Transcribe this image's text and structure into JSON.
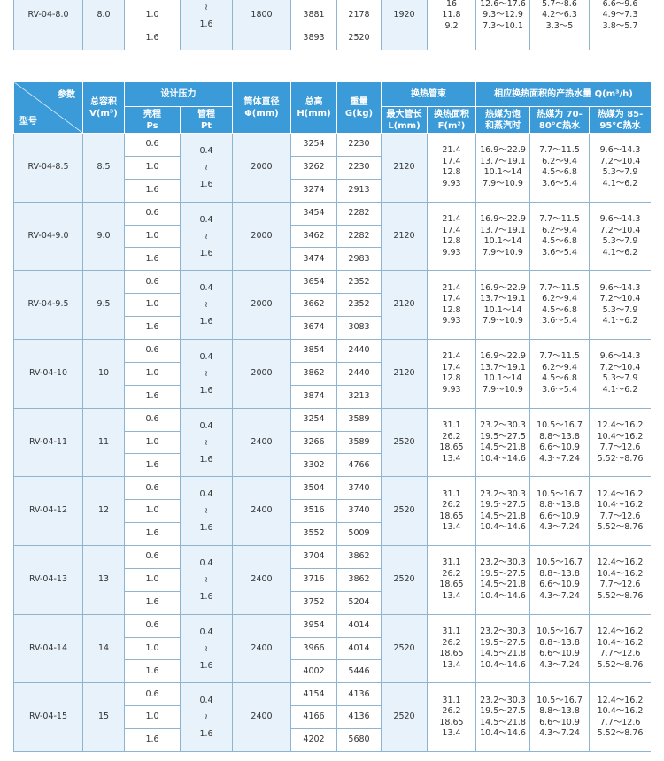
{
  "fragment": {
    "model": "RV-04-8.0",
    "volume": "8.0",
    "ps": [
      "1.0",
      "1.6"
    ],
    "pt": [
      "≀",
      "1.6"
    ],
    "diameter": "1800",
    "heights": [
      "3881",
      "3893"
    ],
    "weights": [
      "2178",
      "2520"
    ],
    "length": "1920",
    "areas": [
      "16",
      "11.8",
      "9.2"
    ],
    "sat": [
      "12.6～17.6",
      "9.3～12.9",
      "7.3～10.1"
    ],
    "w70": [
      "5.7～8.6",
      "4.2～6.3",
      "3.3～5"
    ],
    "w85": [
      "6.6～9.6",
      "4.9～7.3",
      "3.8～5.7"
    ]
  },
  "header": {
    "param": "参数",
    "model": "型号",
    "volume": [
      "总容积",
      "V(m³)"
    ],
    "pressure": "设计压力",
    "ps": [
      "壳程",
      "Ps"
    ],
    "pt": [
      "管程",
      "Pt"
    ],
    "diameter": [
      "筒体直径",
      "Φ(mm)"
    ],
    "height": [
      "总高",
      "H(mm)"
    ],
    "weight": [
      "重量",
      "G(kg)"
    ],
    "tube": "换热管束",
    "length": [
      "最大管长",
      "L(mm)"
    ],
    "area": [
      "换热面积",
      "F(m²)"
    ],
    "output": "相应换热面积的产热水量 Q(m³/h)",
    "sat": [
      "热媒为饱",
      "和蒸汽时"
    ],
    "w70": [
      "热媒为 70-",
      "80°C热水"
    ],
    "w85": [
      "热媒为 85-",
      "95°C热水"
    ]
  },
  "groups": [
    {
      "model": "RV-04-8.5",
      "volume": "8.5",
      "ps": [
        "0.6",
        "1.0",
        "1.6"
      ],
      "pt": [
        "0.4",
        "≀",
        "1.6"
      ],
      "diameter": "2000",
      "heights": [
        "3254",
        "3262",
        "3274"
      ],
      "weights": [
        "2230",
        "2230",
        "2913"
      ],
      "length": "2120",
      "areas": [
        "21.4",
        "17.4",
        "12.8",
        "9.93"
      ],
      "sat": [
        "16.9～22.9",
        "13.7～19.1",
        "10.1～14",
        "7.9～10.9"
      ],
      "w70": [
        "7.7～11.5",
        "6.2～9.4",
        "4.5～6.8",
        "3.6～5.4"
      ],
      "w85": [
        "9.6～14.3",
        "7.2～10.4",
        "5.3～7.9",
        "4.1～6.2"
      ]
    },
    {
      "model": "RV-04-9.0",
      "volume": "9.0",
      "ps": [
        "0.6",
        "1.0",
        "1.6"
      ],
      "pt": [
        "0.4",
        "≀",
        "1.6"
      ],
      "diameter": "2000",
      "heights": [
        "3454",
        "3462",
        "3474"
      ],
      "weights": [
        "2282",
        "2282",
        "2983"
      ],
      "length": "2120",
      "areas": [
        "21.4",
        "17.4",
        "12.8",
        "9.93"
      ],
      "sat": [
        "16.9～22.9",
        "13.7～19.1",
        "10.1～14",
        "7.9～10.9"
      ],
      "w70": [
        "7.7～11.5",
        "6.2～9.4",
        "4.5～6.8",
        "3.6～5.4"
      ],
      "w85": [
        "9.6～14.3",
        "7.2～10.4",
        "5.3～7.9",
        "4.1～6.2"
      ]
    },
    {
      "model": "RV-04-9.5",
      "volume": "9.5",
      "ps": [
        "0.6",
        "1.0",
        "1.6"
      ],
      "pt": [
        "0.4",
        "≀",
        "1.6"
      ],
      "diameter": "2000",
      "heights": [
        "3654",
        "3662",
        "3674"
      ],
      "weights": [
        "2352",
        "2352",
        "3083"
      ],
      "length": "2120",
      "areas": [
        "21.4",
        "17.4",
        "12.8",
        "9.93"
      ],
      "sat": [
        "16.9～22.9",
        "13.7～19.1",
        "10.1～14",
        "7.9～10.9"
      ],
      "w70": [
        "7.7～11.5",
        "6.2～9.4",
        "4.5～6.8",
        "3.6～5.4"
      ],
      "w85": [
        "9.6～14.3",
        "7.2～10.4",
        "5.3～7.9",
        "4.1～6.2"
      ]
    },
    {
      "model": "RV-04-10",
      "volume": "10",
      "ps": [
        "0.6",
        "1.0",
        "1.6"
      ],
      "pt": [
        "0.4",
        "≀",
        "1.6"
      ],
      "diameter": "2000",
      "heights": [
        "3854",
        "3862",
        "3874"
      ],
      "weights": [
        "2440",
        "2440",
        "3213"
      ],
      "length": "2120",
      "areas": [
        "21.4",
        "17.4",
        "12.8",
        "9.93"
      ],
      "sat": [
        "16.9～22.9",
        "13.7～19.1",
        "10.1～14",
        "7.9～10.9"
      ],
      "w70": [
        "7.7～11.5",
        "6.2～9.4",
        "4.5～6.8",
        "3.6～5.4"
      ],
      "w85": [
        "9.6～14.3",
        "7.2～10.4",
        "5.3～7.9",
        "4.1～6.2"
      ]
    },
    {
      "model": "RV-04-11",
      "volume": "11",
      "ps": [
        "0.6",
        "1.0",
        "1.6"
      ],
      "pt": [
        "0.4",
        "≀",
        "1.6"
      ],
      "diameter": "2400",
      "heights": [
        "3254",
        "3266",
        "3302"
      ],
      "weights": [
        "3589",
        "3589",
        "4766"
      ],
      "length": "2520",
      "areas": [
        "31.1",
        "26.2",
        "18.65",
        "13.4"
      ],
      "sat": [
        "23.2～30.3",
        "19.5～27.5",
        "14.5～21.8",
        "10.4～14.6"
      ],
      "w70": [
        "10.5～16.7",
        "8.8～13.8",
        "6.6～10.9",
        "4.3～7.24"
      ],
      "w85": [
        "12.4～16.2",
        "10.4～16.2",
        "7.7～12.6",
        "5.52～8.76"
      ]
    },
    {
      "model": "RV-04-12",
      "volume": "12",
      "ps": [
        "0.6",
        "1.0",
        "1.6"
      ],
      "pt": [
        "0.4",
        "≀",
        "1.6"
      ],
      "diameter": "2400",
      "heights": [
        "3504",
        "3516",
        "3552"
      ],
      "weights": [
        "3740",
        "3740",
        "5009"
      ],
      "length": "2520",
      "areas": [
        "31.1",
        "26.2",
        "18.65",
        "13.4"
      ],
      "sat": [
        "23.2～30.3",
        "19.5～27.5",
        "14.5～21.8",
        "10.4～14.6"
      ],
      "w70": [
        "10.5～16.7",
        "8.8～13.8",
        "6.6～10.9",
        "4.3～7.24"
      ],
      "w85": [
        "12.4～16.2",
        "10.4～16.2",
        "7.7～12.6",
        "5.52～8.76"
      ]
    },
    {
      "model": "RV-04-13",
      "volume": "13",
      "ps": [
        "0.6",
        "1.0",
        "1.6"
      ],
      "pt": [
        "0.4",
        "≀",
        "1.6"
      ],
      "diameter": "2400",
      "heights": [
        "3704",
        "3716",
        "3752"
      ],
      "weights": [
        "3862",
        "3862",
        "5204"
      ],
      "length": "2520",
      "areas": [
        "31.1",
        "26.2",
        "18.65",
        "13.4"
      ],
      "sat": [
        "23.2～30.3",
        "19.5～27.5",
        "14.5～21.8",
        "10.4～14.6"
      ],
      "w70": [
        "10.5～16.7",
        "8.8～13.8",
        "6.6～10.9",
        "4.3～7.24"
      ],
      "w85": [
        "12.4～16.2",
        "10.4～16.2",
        "7.7～12.6",
        "5.52～8.76"
      ]
    },
    {
      "model": "RV-04-14",
      "volume": "14",
      "ps": [
        "0.6",
        "1.0",
        "1.6"
      ],
      "pt": [
        "0.4",
        "≀",
        "1.6"
      ],
      "diameter": "2400",
      "heights": [
        "3954",
        "3966",
        "4002"
      ],
      "weights": [
        "4014",
        "4014",
        "5446"
      ],
      "length": "2520",
      "areas": [
        "31.1",
        "26.2",
        "18.65",
        "13.4"
      ],
      "sat": [
        "23.2～30.3",
        "19.5～27.5",
        "14.5～21.8",
        "10.4～14.6"
      ],
      "w70": [
        "10.5～16.7",
        "8.8～13.8",
        "6.6～10.9",
        "4.3～7.24"
      ],
      "w85": [
        "12.4～16.2",
        "10.4～16.2",
        "7.7～12.6",
        "5.52～8.76"
      ]
    },
    {
      "model": "RV-04-15",
      "volume": "15",
      "ps": [
        "0.6",
        "1.0",
        "1.6"
      ],
      "pt": [
        "0.4",
        "≀",
        "1.6"
      ],
      "diameter": "2400",
      "heights": [
        "4154",
        "4166",
        "4202"
      ],
      "weights": [
        "4136",
        "4136",
        "5680"
      ],
      "length": "2520",
      "areas": [
        "31.1",
        "26.2",
        "18.65",
        "13.4"
      ],
      "sat": [
        "23.2～30.3",
        "19.5～27.5",
        "14.5～21.8",
        "10.4～14.6"
      ],
      "w70": [
        "10.5～16.7",
        "8.8～13.8",
        "6.6～10.9",
        "4.3～7.24"
      ],
      "w85": [
        "12.4～16.2",
        "10.4～16.2",
        "7.7～12.6",
        "5.52～8.76"
      ]
    }
  ]
}
